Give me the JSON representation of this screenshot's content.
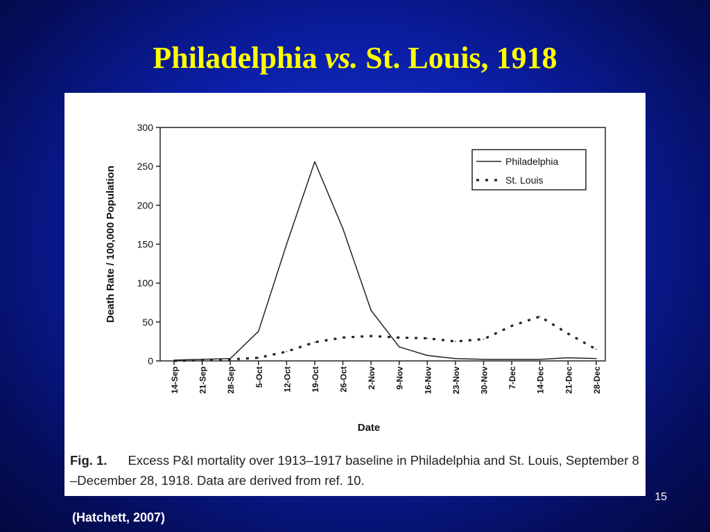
{
  "slide": {
    "title_part1": "Philadelphia ",
    "title_italic": "vs.",
    "title_part2": " St. Louis, 1918",
    "slide_number": "15",
    "citation": "(Hatchett, 2007)"
  },
  "caption": {
    "label": "Fig. 1.",
    "text": "Excess P&I mortality over 1913–1917 baseline in Philadelphia and St. Louis, September 8 –December 28, 1918. Data are derived from ref. 10."
  },
  "chart_data": {
    "type": "line",
    "xlabel": "Date",
    "ylabel": "Death Rate / 100,000 Population",
    "ylim": [
      0,
      300
    ],
    "yticks": [
      0,
      50,
      100,
      150,
      200,
      250,
      300
    ],
    "categories": [
      "14-Sep",
      "21-Sep",
      "28-Sep",
      "5-Oct",
      "12-Oct",
      "19-Oct",
      "26-Oct",
      "2-Nov",
      "9-Nov",
      "16-Nov",
      "23-Nov",
      "30-Nov",
      "7-Dec",
      "14-Dec",
      "21-Dec",
      "28-Dec"
    ],
    "legend_position": "top-right",
    "grid": false,
    "series": [
      {
        "name": "Philadelphia",
        "style": "solid",
        "values": [
          1,
          2,
          3,
          38,
          150,
          256,
          170,
          65,
          18,
          7,
          3,
          2,
          2,
          2,
          4,
          3
        ]
      },
      {
        "name": "St. Louis",
        "style": "dotted",
        "values": [
          0,
          1,
          2,
          4,
          12,
          24,
          30,
          32,
          30,
          29,
          25,
          28,
          45,
          57,
          35,
          15
        ]
      }
    ]
  }
}
